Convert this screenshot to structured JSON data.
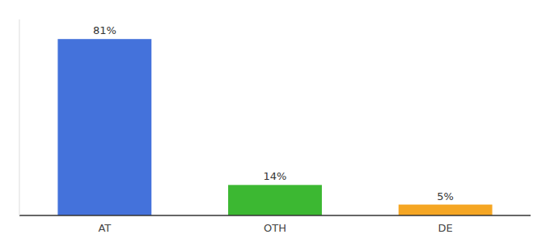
{
  "chart_data": {
    "type": "bar",
    "categories": [
      "AT",
      "OTH",
      "DE"
    ],
    "values": [
      81,
      14,
      5
    ],
    "value_labels": [
      "81%",
      "14%",
      "5%"
    ],
    "colors": [
      "#4472db",
      "#3cb832",
      "#f5a623"
    ],
    "ylim": [
      0,
      90
    ],
    "grid": false,
    "data_labels": true,
    "tick_labels": "x"
  }
}
